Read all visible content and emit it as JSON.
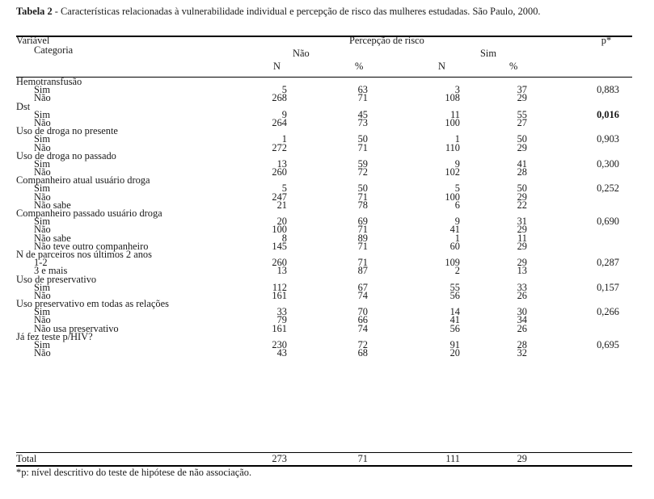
{
  "caption": {
    "label": "Tabela 2",
    "text": " - Características relacionadas à vulnerabilidade individual e percepção de risco das mulheres estudadas. São Paulo, 2000."
  },
  "header": {
    "variavel": "Variável",
    "categoria": "Categoria",
    "percepcao": "Percepção de risco",
    "p": "p*",
    "nao": "Não",
    "sim": "Sim",
    "n": "N",
    "pct": "%"
  },
  "rows": [
    {
      "type": "var",
      "label": "Hemotransfusão"
    },
    {
      "type": "cat",
      "label": "Sim",
      "n_nao": "5",
      "pct_nao": "63",
      "n_sim": "3",
      "pct_sim": "37",
      "p": "0,883"
    },
    {
      "type": "cat",
      "label": "Não",
      "n_nao": "268",
      "pct_nao": "71",
      "n_sim": "108",
      "pct_sim": "29"
    },
    {
      "type": "var",
      "label": "Dst"
    },
    {
      "type": "cat",
      "label": "Sim",
      "n_nao": "9",
      "pct_nao": "45",
      "n_sim": "11",
      "pct_sim": "55",
      "p": "0,016",
      "p_bold": true
    },
    {
      "type": "cat",
      "label": "Não",
      "n_nao": "264",
      "pct_nao": "73",
      "n_sim": "100",
      "pct_sim": "27"
    },
    {
      "type": "var",
      "label": "Uso de droga no presente"
    },
    {
      "type": "cat",
      "label": "Sim",
      "n_nao": "1",
      "pct_nao": "50",
      "n_sim": "1",
      "pct_sim": "50",
      "p": "0,903"
    },
    {
      "type": "cat",
      "label": "Não",
      "n_nao": "272",
      "pct_nao": "71",
      "n_sim": "110",
      "pct_sim": "29"
    },
    {
      "type": "var",
      "label": "Uso de droga no passado"
    },
    {
      "type": "cat",
      "label": "Sim",
      "n_nao": "13",
      "pct_nao": "59",
      "n_sim": "9",
      "pct_sim": "41",
      "p": "0,300"
    },
    {
      "type": "cat",
      "label": "Não",
      "n_nao": "260",
      "pct_nao": "72",
      "n_sim": "102",
      "pct_sim": "28"
    },
    {
      "type": "var",
      "label": "Companheiro atual usuário droga"
    },
    {
      "type": "cat",
      "label": "Sim",
      "n_nao": "5",
      "pct_nao": "50",
      "n_sim": "5",
      "pct_sim": "50",
      "p": "0,252"
    },
    {
      "type": "cat",
      "label": "Não",
      "n_nao": "247",
      "pct_nao": "71",
      "n_sim": "100",
      "pct_sim": "29"
    },
    {
      "type": "cat",
      "label": "Não sabe",
      "n_nao": "21",
      "pct_nao": "78",
      "n_sim": "6",
      "pct_sim": "22"
    },
    {
      "type": "var",
      "label": "Companheiro passado usuário droga"
    },
    {
      "type": "cat",
      "label": "Sim",
      "n_nao": "20",
      "pct_nao": "69",
      "n_sim": "9",
      "pct_sim": "31",
      "p": "0,690"
    },
    {
      "type": "cat",
      "label": "Não",
      "n_nao": "100",
      "pct_nao": "71",
      "n_sim": "41",
      "pct_sim": "29"
    },
    {
      "type": "cat",
      "label": "Não sabe",
      "n_nao": "8",
      "pct_nao": "89",
      "n_sim": "1",
      "pct_sim": "11"
    },
    {
      "type": "cat",
      "label": "Não teve outro companheiro",
      "n_nao": "145",
      "pct_nao": "71",
      "n_sim": "60",
      "pct_sim": "29"
    },
    {
      "type": "var",
      "label": "N de parceiros nos últimos 2 anos"
    },
    {
      "type": "cat",
      "label": "1-2",
      "n_nao": "260",
      "pct_nao": "71",
      "n_sim": "109",
      "pct_sim": "29",
      "p": "0,287"
    },
    {
      "type": "cat",
      "label": "3 e mais",
      "n_nao": "13",
      "pct_nao": "87",
      "n_sim": "2",
      "pct_sim": "13"
    },
    {
      "type": "var",
      "label": "Uso de preservativo"
    },
    {
      "type": "cat",
      "label": "Sim",
      "n_nao": "112",
      "pct_nao": "67",
      "n_sim": "55",
      "pct_sim": "33",
      "p": "0,157"
    },
    {
      "type": "cat",
      "label": "Não",
      "n_nao": "161",
      "pct_nao": "74",
      "n_sim": "56",
      "pct_sim": "26"
    },
    {
      "type": "var",
      "label": "Uso preservativo em todas as relações"
    },
    {
      "type": "cat",
      "label": "Sim",
      "n_nao": "33",
      "pct_nao": "70",
      "n_sim": "14",
      "pct_sim": "30",
      "p": "0,266"
    },
    {
      "type": "cat",
      "label": "Não",
      "n_nao": "79",
      "pct_nao": "66",
      "n_sim": "41",
      "pct_sim": "34"
    },
    {
      "type": "cat",
      "label": "Não usa preservativo",
      "n_nao": "161",
      "pct_nao": "74",
      "n_sim": "56",
      "pct_sim": "26"
    },
    {
      "type": "var",
      "label": "Já fez teste p/HIV?"
    },
    {
      "type": "cat",
      "label": "Sim",
      "n_nao": "230",
      "pct_nao": "72",
      "n_sim": "91",
      "pct_sim": "28",
      "p": "0,695"
    },
    {
      "type": "cat",
      "label": "Não",
      "n_nao": "43",
      "pct_nao": "68",
      "n_sim": "20",
      "pct_sim": "32"
    }
  ],
  "total": {
    "label": "Total",
    "n_nao": "273",
    "pct_nao": "71",
    "n_sim": "111",
    "pct_sim": "29"
  },
  "footnote": "*p: nível descritivo do teste de hipótese de não associação."
}
